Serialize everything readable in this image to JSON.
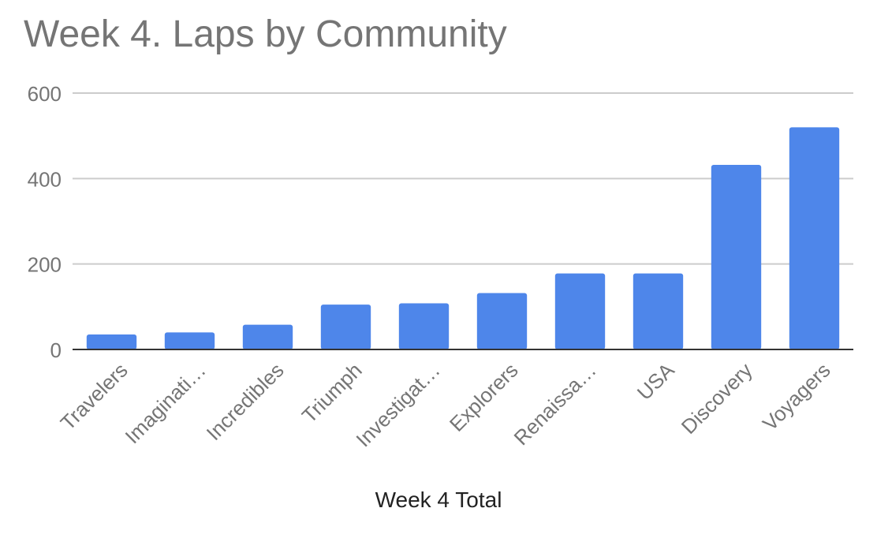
{
  "chart_data": {
    "type": "bar",
    "title": "Week 4. Laps by Community",
    "xlabel": "Week 4 Total",
    "ylabel": "",
    "ylim": [
      0,
      600
    ],
    "yticks": [
      "0",
      "200",
      "400",
      "600"
    ],
    "categories": [
      "Travelers",
      "Imaginati…",
      "Incredibles",
      "Triumph",
      "Investigat…",
      "Explorers",
      "Renaissa…",
      "USA",
      "Discovery",
      "Voyagers"
    ],
    "values": [
      35,
      40,
      58,
      105,
      108,
      132,
      178,
      178,
      432,
      520
    ],
    "grid": true,
    "legend": "none",
    "bar_color": "#4e86ea",
    "grid_color": "#cccccc",
    "axis_color": "#333333",
    "text_color": "#757575"
  }
}
